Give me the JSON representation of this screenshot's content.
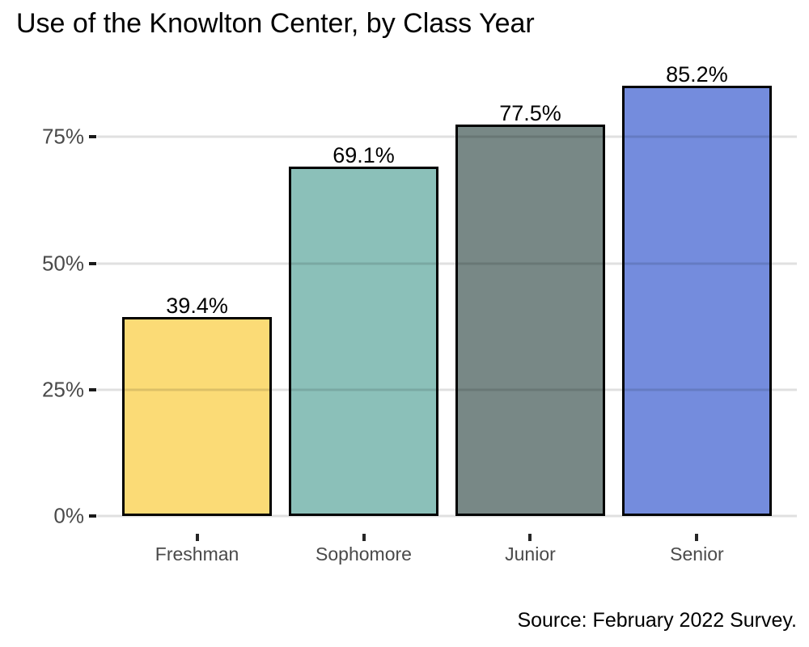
{
  "title": "Use of the Knowlton Center, by Class Year",
  "source_note": "Source: February 2022 Survey.",
  "chart_data": {
    "type": "bar",
    "title": "Use of the Knowlton Center, by Class Year",
    "categories": [
      "Freshman",
      "Sophomore",
      "Junior",
      "Senior"
    ],
    "values": [
      39.4,
      69.1,
      77.5,
      85.2
    ],
    "value_labels": [
      "39.4%",
      "69.1%",
      "77.5%",
      "85.2%"
    ],
    "bar_colors": [
      "#fbdb76",
      "#8bc0b9",
      "#788886",
      "#748cdd"
    ],
    "bar_border_color": "#000000",
    "xlabel": "",
    "ylabel": "",
    "y_ticks": [
      0,
      25,
      50,
      75
    ],
    "y_tick_labels": [
      "0%",
      "25%",
      "50%",
      "75%"
    ],
    "ylim": [
      0,
      90
    ],
    "grid": "horizontal",
    "legend": "none",
    "annotations": [
      "Source: February 2022 Survey."
    ]
  },
  "colors": {
    "grid": "#e2e2e2",
    "axis_text": "#4a4a4a",
    "tick": "#1a1a1a",
    "title_text": "#000000"
  }
}
